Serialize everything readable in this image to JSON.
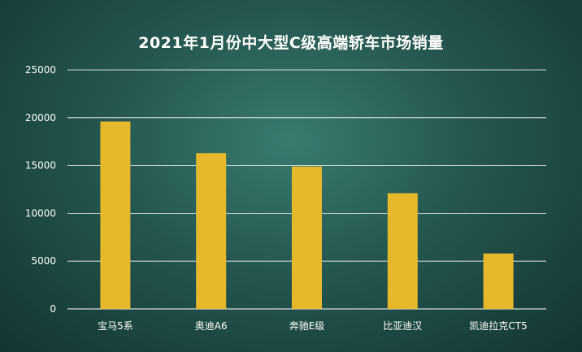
{
  "chart_data": {
    "type": "bar",
    "title": "2021年1月份中大型C级高端轿车市场销量",
    "categories": [
      "宝马5系",
      "奥迪A6",
      "奔驰E级",
      "比亚迪汉",
      "凯迪拉克CT5"
    ],
    "values": [
      19600,
      16300,
      14900,
      12100,
      5800
    ],
    "ylim": [
      0,
      25000
    ],
    "yticks": [
      0,
      5000,
      10000,
      15000,
      20000,
      25000
    ],
    "grid": true,
    "colors": {
      "bar": "#e6b82c",
      "grid": "#ffffff",
      "text": "#ffffff"
    }
  }
}
